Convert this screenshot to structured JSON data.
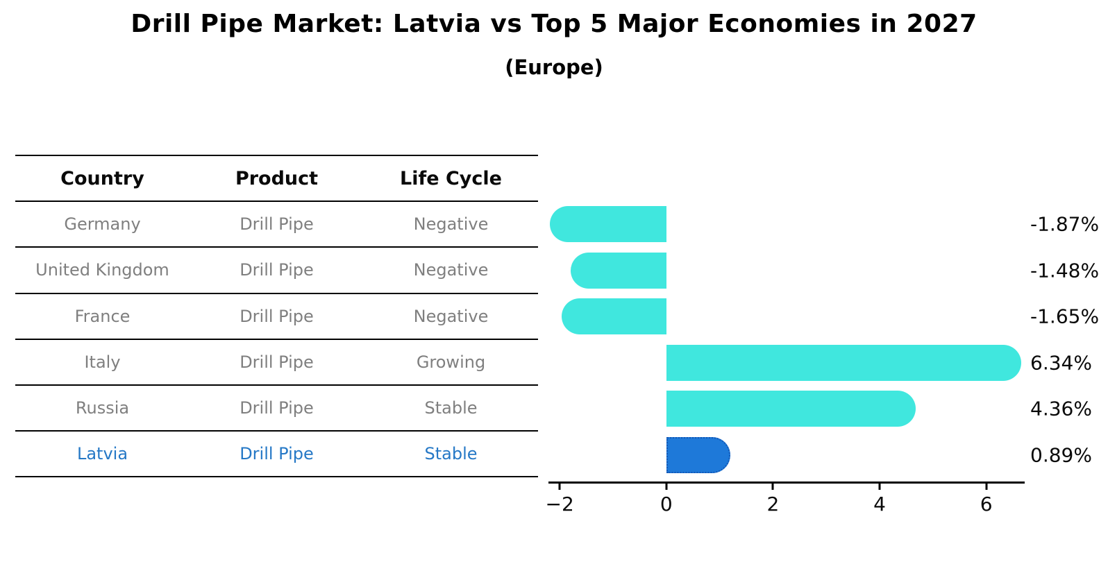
{
  "title": "Drill Pipe Market: Latvia vs Top 5 Major Economies in 2027",
  "subtitle": "(Europe)",
  "table": {
    "headers": [
      "Country",
      "Product",
      "Life Cycle"
    ],
    "rows": [
      {
        "country": "Germany",
        "product": "Drill Pipe",
        "life_cycle": "Negative",
        "highlight": false
      },
      {
        "country": "United Kingdom",
        "product": "Drill Pipe",
        "life_cycle": "Negative",
        "highlight": false
      },
      {
        "country": "France",
        "product": "Drill Pipe",
        "life_cycle": "Negative",
        "highlight": false
      },
      {
        "country": "Italy",
        "product": "Drill Pipe",
        "life_cycle": "Growing",
        "highlight": false
      },
      {
        "country": "Russia",
        "product": "Drill Pipe",
        "life_cycle": "Stable",
        "highlight": false
      },
      {
        "country": "Latvia",
        "product": "Drill Pipe",
        "life_cycle": "Stable",
        "highlight": true
      }
    ]
  },
  "chart_data": {
    "type": "bar",
    "orientation": "horizontal",
    "title": "Drill Pipe Market: Latvia vs Top 5 Major Economies in 2027",
    "subtitle": "(Europe)",
    "categories": [
      "Germany",
      "United Kingdom",
      "France",
      "Italy",
      "Russia",
      "Latvia"
    ],
    "values": [
      -1.87,
      -1.48,
      -1.65,
      6.34,
      4.36,
      0.89
    ],
    "value_labels": [
      "-1.87%",
      "-1.48%",
      "-1.65%",
      "6.34%",
      "4.36%",
      "0.89%"
    ],
    "highlight_index": 5,
    "x_ticks": [
      -2,
      0,
      2,
      4,
      6
    ],
    "x_tick_labels": [
      "−2",
      "0",
      "2",
      "4",
      "6"
    ],
    "xlim": [
      -2.21,
      6.72
    ],
    "grid": false,
    "legend": "none",
    "colors": {
      "bar_default": "#40e7de",
      "bar_highlight": "#1e79d9",
      "highlight_border": "#1357b5",
      "highlight_text": "#2578c6",
      "row_text": "#7f7f7f",
      "axis_text": "#0a0a0a"
    }
  }
}
